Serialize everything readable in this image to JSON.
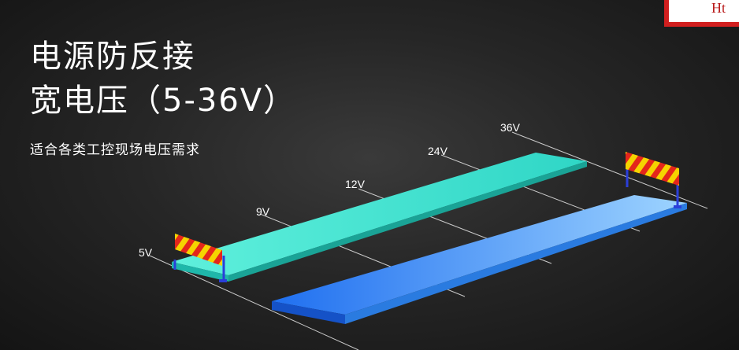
{
  "title_line1": "电源防反接",
  "title_line2": "宽电压（5-36V）",
  "subtitle": "适合各类工控现场电压需求",
  "corner_text": "Ht",
  "voltage_labels": [
    "5V",
    "9V",
    "12V",
    "24V",
    "36V"
  ],
  "colors": {
    "strip_top": "#3fe0cc",
    "strip_bottom": "#3a86f0",
    "barrier_stripe_1": "#f5d400",
    "barrier_stripe_2": "#e4261b",
    "badge_border": "#d11f1f"
  }
}
